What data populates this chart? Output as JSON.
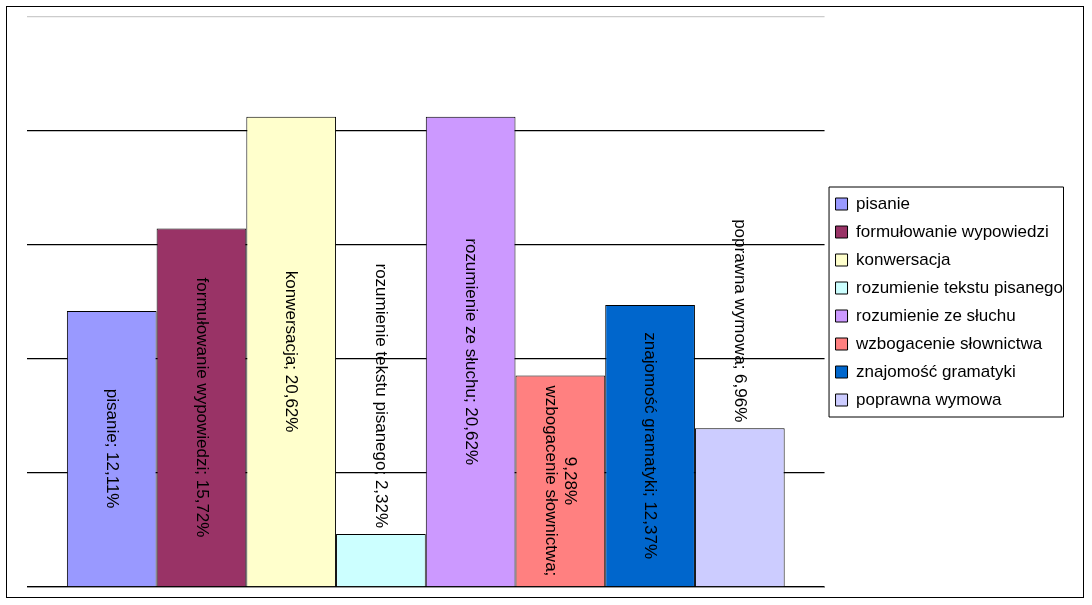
{
  "chart_data": {
    "type": "bar",
    "categories": [
      null
    ],
    "series": [
      {
        "name": "pisanie",
        "color": "#9999ff",
        "values": [
          12.11
        ],
        "value_labels": [
          "pisanie; 12,11%"
        ]
      },
      {
        "name": "formułowanie wypowiedzi",
        "color": "#993366",
        "values": [
          15.72
        ],
        "value_labels": [
          "formułowanie wypowiedzi; 15,72%"
        ]
      },
      {
        "name": "konwersacja",
        "color": "#ffffcc",
        "values": [
          20.62
        ],
        "value_labels": [
          "konwersacja; 20,62%"
        ]
      },
      {
        "name": "rozumienie tekstu pisanego",
        "color": "#ccffff",
        "values": [
          2.32
        ],
        "value_labels": [
          "rozumienie tekstu pisanego; 2,32%"
        ]
      },
      {
        "name": "rozumienie ze słuchu",
        "color": "#cc99ff",
        "values": [
          20.62
        ],
        "value_labels": [
          "rozumienie ze słuchu; 20,62%"
        ]
      },
      {
        "name": "wzbogacenie słownictwa",
        "color": "#ff8080",
        "values": [
          9.28
        ],
        "value_labels": [
          "wzbogacenie słownictwa; 9,28%"
        ]
      },
      {
        "name": "znajomość gramatyki",
        "color": "#0066cc",
        "values": [
          12.37
        ],
        "value_labels": [
          "znajomość gramatyki; 12,37%"
        ]
      },
      {
        "name": "poprawna wymowa",
        "color": "#ccccff",
        "values": [
          6.96
        ],
        "value_labels": [
          "poprawna wymowa; 6,96%"
        ]
      }
    ],
    "ylim": [
      0,
      25
    ],
    "tick_labels": false,
    "grid": "y",
    "legend": "right"
  }
}
